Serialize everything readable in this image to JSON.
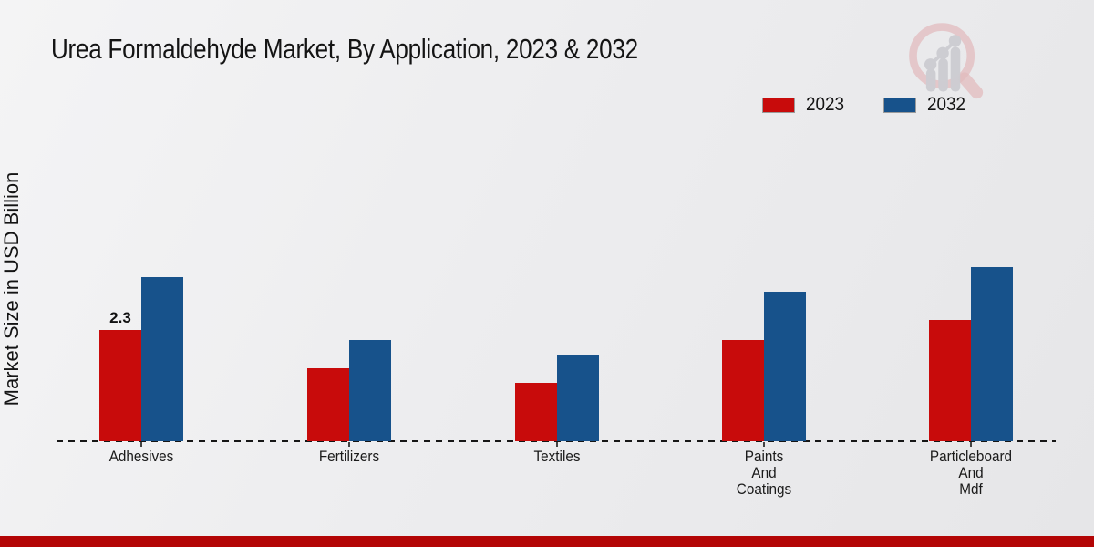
{
  "page": {
    "title": "Urea Formaldehyde Market, By Application, 2023 & 2032"
  },
  "y_axis_label": "Market Size in USD Billion",
  "legend": {
    "items": [
      {
        "label": "2023",
        "color": "#c80b0b"
      },
      {
        "label": "2032",
        "color": "#17528b"
      }
    ]
  },
  "colors": {
    "series_2023": "#c80b0b",
    "series_2032": "#17528b",
    "footer_bar": "#b30505",
    "baseline": "#161616",
    "logo_ring": "#e0b0b3",
    "logo_bars": "#c5c5cb"
  },
  "chart_data": {
    "type": "bar",
    "title": "Urea Formaldehyde Market, By Application, 2023 & 2032",
    "xlabel": "",
    "ylabel": "Market Size in USD Billion",
    "categories": [
      "Adhesives",
      "Fertilizers",
      "Textiles",
      "Paints And Coatings",
      "Particleboard And Mdf"
    ],
    "category_label_lines": [
      [
        "Adhesives"
      ],
      [
        "Fertilizers"
      ],
      [
        "Textiles"
      ],
      [
        "Paints",
        "And",
        "Coatings"
      ],
      [
        "Particleboard",
        "And",
        "Mdf"
      ]
    ],
    "series": [
      {
        "name": "2023",
        "color": "#c80b0b",
        "values": [
          2.3,
          1.5,
          1.2,
          2.1,
          2.5
        ]
      },
      {
        "name": "2032",
        "color": "#17528b",
        "values": [
          3.4,
          2.1,
          1.8,
          3.1,
          3.6
        ]
      }
    ],
    "data_labels": [
      {
        "category": "Adhesives",
        "series": "2023",
        "text": "2.3"
      }
    ],
    "ylim": [
      0,
      4
    ],
    "grid": false,
    "axis_line_style": "dashed",
    "legend_position": "top-right",
    "units": "USD Billion"
  },
  "footer": {}
}
